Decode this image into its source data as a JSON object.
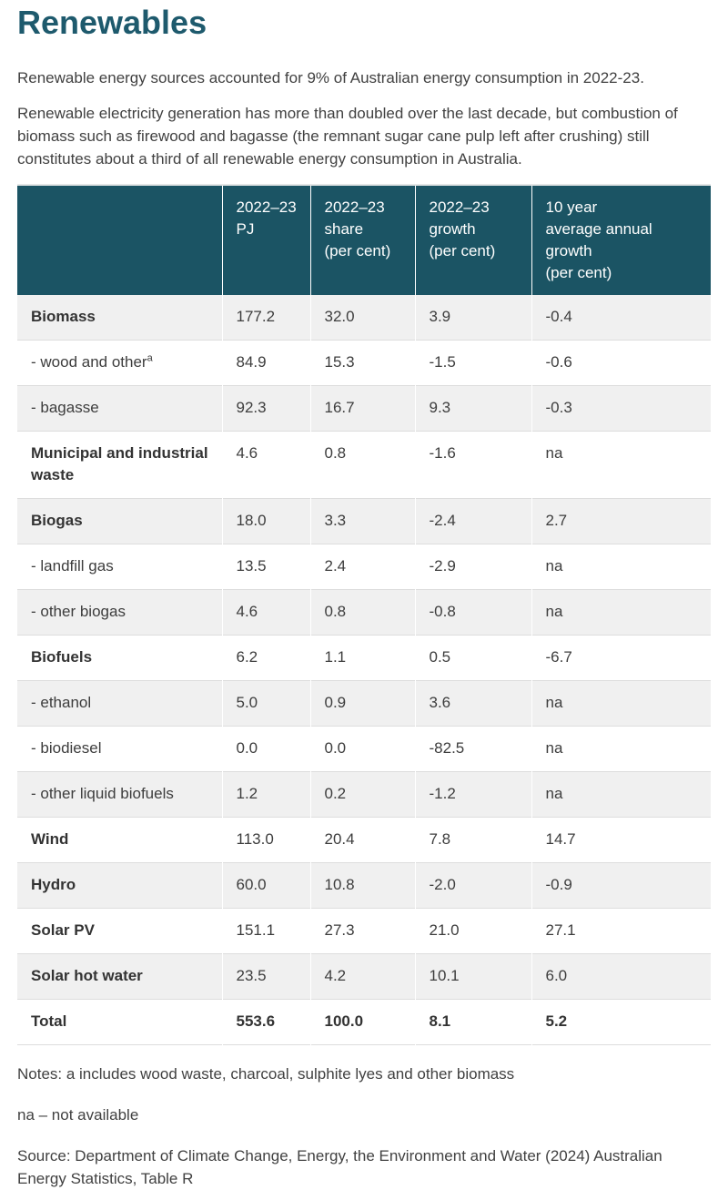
{
  "page": {
    "title": "Renewables",
    "intro": [
      "Renewable energy sources accounted for 9% of Australian energy consumption in 2022-23.",
      "Renewable electricity generation has more than doubled over the last decade, but combustion of biomass such as firewood and bagasse (the remnant sugar cane pulp left after crushing) still constitutes about a third of all renewable energy consumption in Australia."
    ]
  },
  "colors": {
    "title_teal": "#1e5a6d",
    "header_teal": "#1b5464",
    "row_alt_gray": "#f0f0f0",
    "row_border_gray": "#dddddd",
    "body_text": "#414141"
  },
  "table": {
    "headers": [
      "",
      "2022–23\nPJ",
      "2022–23\nshare\n(per cent)",
      "2022–23\ngrowth\n(per cent)",
      "10 year\naverage annual\ngrowth\n(per cent)"
    ],
    "rows": [
      {
        "label": "Biomass",
        "bold": true,
        "values": [
          "177.2",
          "32.0",
          "3.9",
          "-0.4"
        ]
      },
      {
        "label": "- wood and other",
        "sup": "a",
        "bold": false,
        "values": [
          "84.9",
          "15.3",
          "-1.5",
          "-0.6"
        ]
      },
      {
        "label": "- bagasse",
        "bold": false,
        "values": [
          "92.3",
          "16.7",
          "9.3",
          "-0.3"
        ]
      },
      {
        "label": "Municipal and industrial waste",
        "bold": true,
        "values": [
          "4.6",
          "0.8",
          "-1.6",
          "na"
        ]
      },
      {
        "label": "Biogas",
        "bold": true,
        "values": [
          "18.0",
          "3.3",
          "-2.4",
          "2.7"
        ]
      },
      {
        "label": "- landfill gas",
        "bold": false,
        "values": [
          "13.5",
          "2.4",
          "-2.9",
          "na"
        ]
      },
      {
        "label": "- other biogas",
        "bold": false,
        "values": [
          "4.6",
          "0.8",
          "-0.8",
          "na"
        ]
      },
      {
        "label": "Biofuels",
        "bold": true,
        "values": [
          "6.2",
          "1.1",
          "0.5",
          "-6.7"
        ]
      },
      {
        "label": "- ethanol",
        "bold": false,
        "values": [
          "5.0",
          "0.9",
          "3.6",
          "na"
        ]
      },
      {
        "label": "- biodiesel",
        "bold": false,
        "values": [
          "0.0",
          "0.0",
          "-82.5",
          "na"
        ]
      },
      {
        "label": "- other liquid biofuels",
        "bold": false,
        "values": [
          "1.2",
          "0.2",
          "-1.2",
          "na"
        ]
      },
      {
        "label": "Wind",
        "bold": true,
        "values": [
          "113.0",
          "20.4",
          "7.8",
          "14.7"
        ]
      },
      {
        "label": "Hydro",
        "bold": true,
        "values": [
          "60.0",
          "10.8",
          "-2.0",
          "-0.9"
        ]
      },
      {
        "label": "Solar PV",
        "bold": true,
        "values": [
          "151.1",
          "27.3",
          "21.0",
          "27.1"
        ]
      },
      {
        "label": "Solar hot water",
        "bold": true,
        "values": [
          "23.5",
          "4.2",
          "10.1",
          "6.0"
        ]
      },
      {
        "label": "Total",
        "bold": true,
        "total": true,
        "values": [
          "553.6",
          "100.0",
          "8.1",
          "5.2"
        ]
      }
    ]
  },
  "notes": [
    "Notes: a includes wood waste, charcoal, sulphite lyes and other biomass",
    "na – not available",
    "Source: Department of Climate Change, Energy, the Environment and Water (2024) Australian Energy Statistics, Table R"
  ]
}
